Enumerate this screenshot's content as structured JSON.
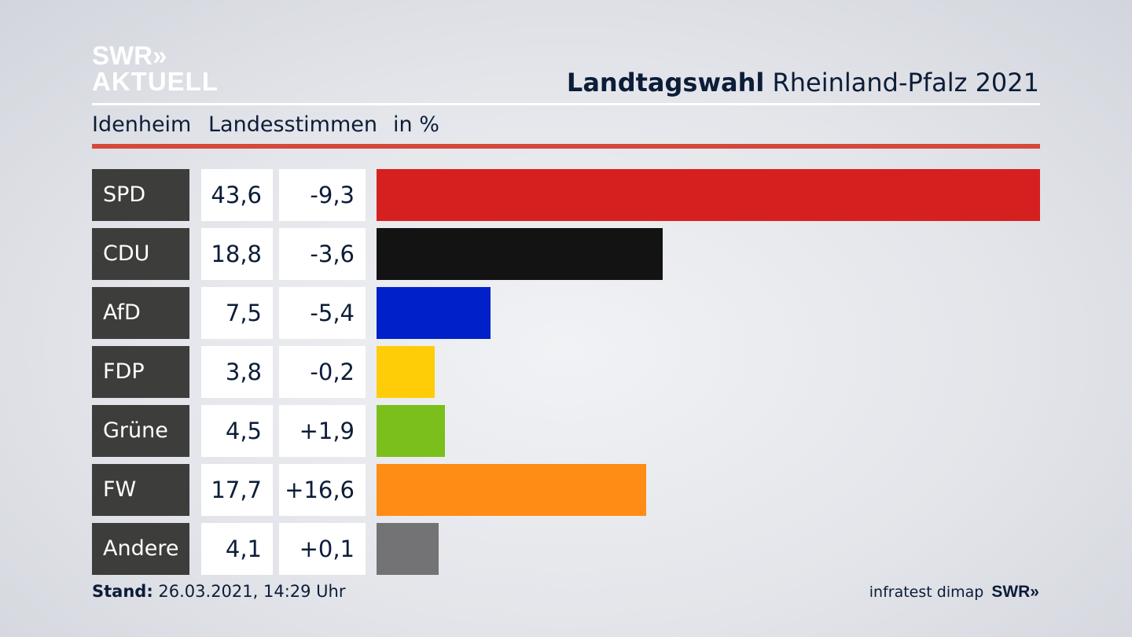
{
  "logo": {
    "line1": "SWR»",
    "line2": "AKTUELL"
  },
  "header": {
    "title_bold": "Landtagswahl",
    "title_rest": " Rheinland-Pfalz 2021",
    "location": "Idenheim",
    "vote_type": "Landesstimmen",
    "unit": "in %"
  },
  "chart_data": {
    "type": "bar",
    "orientation": "horizontal",
    "title": "Landtagswahl Rheinland-Pfalz 2021",
    "subtitle": "Idenheim Landesstimmen in %",
    "categories": [
      "SPD",
      "CDU",
      "AfD",
      "FDP",
      "Grüne",
      "FW",
      "Andere"
    ],
    "values": [
      43.6,
      18.8,
      7.5,
      3.8,
      4.5,
      17.7,
      4.1
    ],
    "value_labels": [
      "43,6",
      "18,8",
      "7,5",
      "3,8",
      "4,5",
      "17,7",
      "4,1"
    ],
    "changes": [
      -9.3,
      -3.6,
      -5.4,
      -0.2,
      1.9,
      16.6,
      0.1
    ],
    "change_labels": [
      "-9,3",
      "-3,6",
      "-5,4",
      "-0,2",
      "+1,9",
      "+16,6",
      "+0,1"
    ],
    "colors": [
      "#d6201f",
      "#131313",
      "#0021c9",
      "#ffcd08",
      "#7abf1c",
      "#ff8c15",
      "#737375"
    ],
    "xlim": [
      0,
      43.6
    ]
  },
  "footer": {
    "stand_label": "Stand:",
    "stand_value": " 26.03.2021, 14:29 Uhr",
    "source": "infratest dimap",
    "brand": "SWR»"
  }
}
